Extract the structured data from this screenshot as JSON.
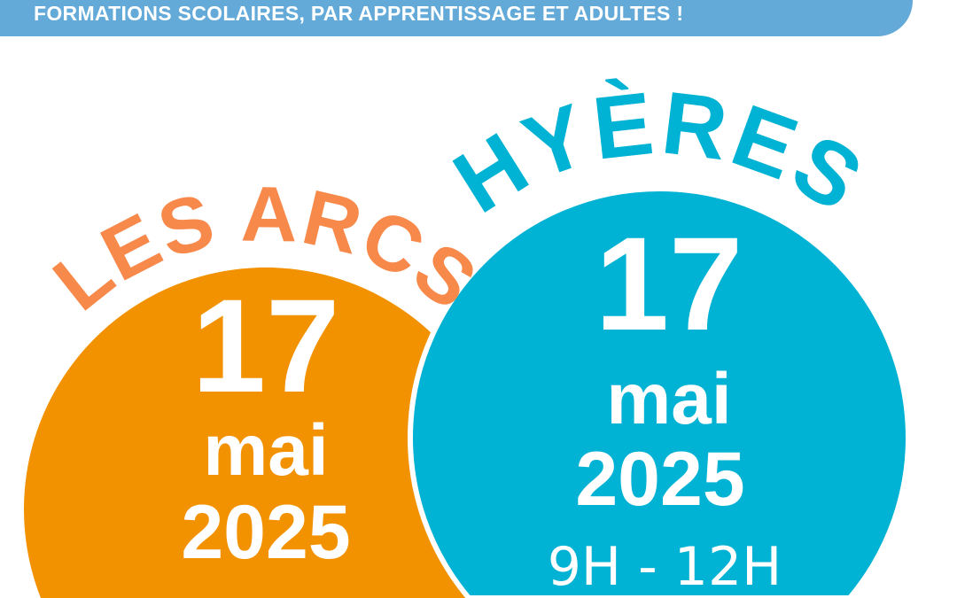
{
  "banner": {
    "text": "FORMATIONS SCOLAIRES, PAR APPRENTISSAGE ET ADULTES !"
  },
  "colors": {
    "banner": "#63aad8",
    "orange_circle": "#f39200",
    "orange_title": "#f7894a",
    "blue_circle": "#00b2d3",
    "blue_title": "#00b2d3"
  },
  "les_arcs": {
    "title": "LES ARCS",
    "day": "17",
    "month": "mai",
    "year": "2025"
  },
  "hyeres": {
    "title": "HYÈRES",
    "day": "17",
    "month": "mai",
    "year": "2025",
    "hours": "9H - 12H"
  }
}
